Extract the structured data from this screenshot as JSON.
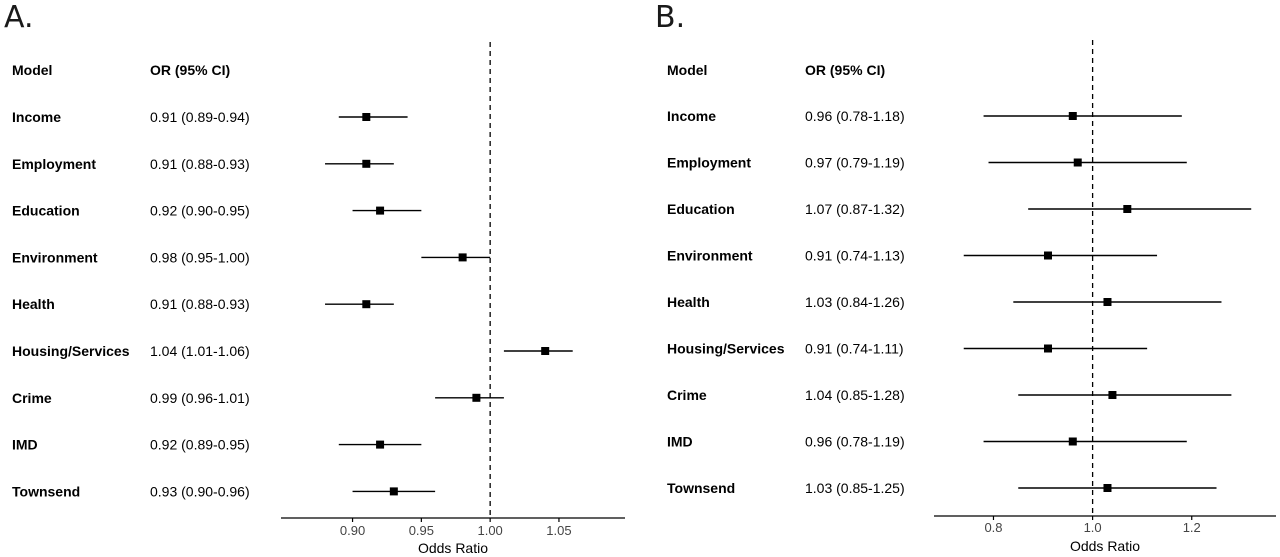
{
  "chart_data": [
    {
      "type": "forest",
      "panel": "A.",
      "header": {
        "model": "Model",
        "or": "OR (95% CI)"
      },
      "xlabel": "Odds Ratio",
      "xlim": [
        0.848,
        1.098
      ],
      "xticks": [
        0.9,
        0.95,
        1.0,
        1.05
      ],
      "xtick_labels": [
        "0.90",
        "0.95",
        "1.00",
        "1.05"
      ],
      "reference_line": 1.0,
      "rows": [
        {
          "model": "Income",
          "or_text": "0.91 (0.89-0.94)",
          "or": 0.91,
          "lo": 0.89,
          "hi": 0.94
        },
        {
          "model": "Employment",
          "or_text": "0.91 (0.88-0.93)",
          "or": 0.91,
          "lo": 0.88,
          "hi": 0.93
        },
        {
          "model": "Education",
          "or_text": "0.92 (0.90-0.95)",
          "or": 0.92,
          "lo": 0.9,
          "hi": 0.95
        },
        {
          "model": "Environment",
          "or_text": "0.98 (0.95-1.00)",
          "or": 0.98,
          "lo": 0.95,
          "hi": 1.0
        },
        {
          "model": "Health",
          "or_text": "0.91 (0.88-0.93)",
          "or": 0.91,
          "lo": 0.88,
          "hi": 0.93
        },
        {
          "model": "Housing/Services",
          "or_text": "1.04 (1.01-1.06)",
          "or": 1.04,
          "lo": 1.01,
          "hi": 1.06
        },
        {
          "model": "Crime",
          "or_text": "0.99 (0.96-1.01)",
          "or": 0.99,
          "lo": 0.96,
          "hi": 1.01
        },
        {
          "model": "IMD",
          "or_text": "0.92 (0.89-0.95)",
          "or": 0.92,
          "lo": 0.89,
          "hi": 0.95
        },
        {
          "model": "Townsend",
          "or_text": "0.93 (0.90-0.96)",
          "or": 0.93,
          "lo": 0.9,
          "hi": 0.96
        }
      ]
    },
    {
      "type": "forest",
      "panel": "B.",
      "header": {
        "model": "Model",
        "or": "OR (95% CI)"
      },
      "xlabel": "Odds Ratio",
      "xlim": [
        0.68,
        1.37
      ],
      "xticks": [
        0.8,
        1.0,
        1.2
      ],
      "xtick_labels": [
        "0.8",
        "1.0",
        "1.2"
      ],
      "reference_line": 1.0,
      "rows": [
        {
          "model": "Income",
          "or_text": "0.96 (0.78-1.18)",
          "or": 0.96,
          "lo": 0.78,
          "hi": 1.18
        },
        {
          "model": "Employment",
          "or_text": "0.97 (0.79-1.19)",
          "or": 0.97,
          "lo": 0.79,
          "hi": 1.19
        },
        {
          "model": "Education",
          "or_text": "1.07 (0.87-1.32)",
          "or": 1.07,
          "lo": 0.87,
          "hi": 1.32
        },
        {
          "model": "Environment",
          "or_text": "0.91 (0.74-1.13)",
          "or": 0.91,
          "lo": 0.74,
          "hi": 1.13
        },
        {
          "model": "Health",
          "or_text": "1.03 (0.84-1.26)",
          "or": 1.03,
          "lo": 0.84,
          "hi": 1.26
        },
        {
          "model": "Housing/Services",
          "or_text": "0.91 (0.74-1.11)",
          "or": 0.91,
          "lo": 0.74,
          "hi": 1.11
        },
        {
          "model": "Crime",
          "or_text": "1.04 (0.85-1.28)",
          "or": 1.04,
          "lo": 0.85,
          "hi": 1.28
        },
        {
          "model": "IMD",
          "or_text": "0.96 (0.78-1.19)",
          "or": 0.96,
          "lo": 0.78,
          "hi": 1.19
        },
        {
          "model": "Townsend",
          "or_text": "1.03 (0.85-1.25)",
          "or": 1.03,
          "lo": 0.85,
          "hi": 1.25
        }
      ]
    }
  ]
}
